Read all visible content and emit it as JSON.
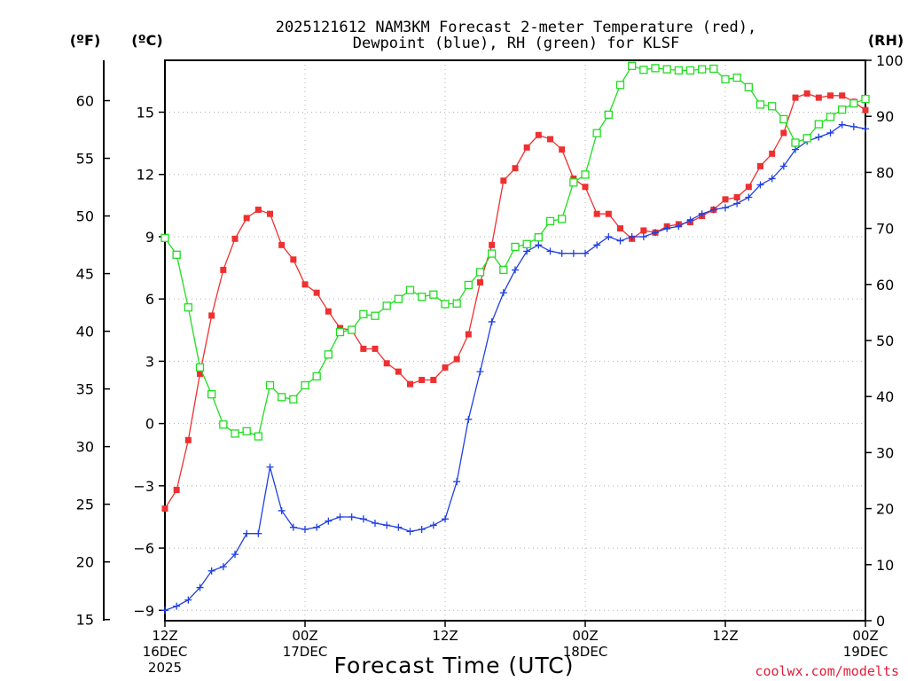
{
  "title": {
    "line1": "2025121612 NAM3KM Forecast 2-meter Temperature (red),",
    "line2": "Dewpoint (blue), RH (green) for KLSF"
  },
  "units": {
    "f": "(ºF)",
    "c": "(ºC)",
    "rh": "(RH)"
  },
  "xaxis_title": "Forecast Time (UTC)",
  "credit": "coolwx.com/modelts",
  "chart_data": {
    "type": "line",
    "title": "2025121612 NAM3KM Forecast 2-meter Temperature (red), Dewpoint (blue), RH (green) for KLSF",
    "xlabel": "Forecast Time (UTC)",
    "x_hours": [
      0,
      1,
      2,
      3,
      4,
      5,
      6,
      7,
      8,
      9,
      10,
      11,
      12,
      13,
      14,
      15,
      16,
      17,
      18,
      19,
      20,
      21,
      22,
      23,
      24,
      25,
      26,
      27,
      28,
      29,
      30,
      31,
      32,
      33,
      34,
      35,
      36,
      37,
      38,
      39,
      40,
      41,
      42,
      43,
      44,
      45,
      46,
      47,
      48,
      49,
      50,
      51,
      52,
      53,
      54,
      55,
      56,
      57,
      58,
      59,
      60
    ],
    "xlim": [
      0,
      60
    ],
    "x_ticks": [
      {
        "hour": 0,
        "lines": [
          "12Z",
          "16DEC",
          "2025"
        ]
      },
      {
        "hour": 12,
        "lines": [
          "00Z",
          "17DEC"
        ]
      },
      {
        "hour": 24,
        "lines": [
          "12Z"
        ]
      },
      {
        "hour": 36,
        "lines": [
          "00Z",
          "18DEC"
        ]
      },
      {
        "hour": 48,
        "lines": [
          "12Z"
        ]
      },
      {
        "hour": 60,
        "lines": [
          "00Z",
          "19DEC"
        ]
      }
    ],
    "y_left_celsius": {
      "label": "(ºC)",
      "range": [
        -9.5,
        17.5
      ],
      "ticks": [
        -9,
        -6,
        -3,
        0,
        3,
        6,
        9,
        12,
        15
      ]
    },
    "y_left_fahrenheit": {
      "label": "(ºF)",
      "ticks": [
        15,
        20,
        25,
        30,
        35,
        40,
        45,
        50,
        55,
        60
      ]
    },
    "y_right_rh": {
      "label": "(RH)",
      "range": [
        0,
        100
      ],
      "ticks": [
        0,
        10,
        20,
        30,
        40,
        50,
        60,
        70,
        80,
        90,
        100
      ]
    },
    "series": [
      {
        "name": "2-meter Temperature",
        "color": "#ee3030",
        "marker": "filled-square",
        "axis": "celsius",
        "values": [
          -4.1,
          -3.2,
          -0.8,
          2.4,
          5.2,
          7.4,
          8.9,
          9.9,
          10.3,
          10.1,
          8.6,
          7.9,
          6.7,
          6.3,
          5.4,
          4.6,
          4.5,
          3.6,
          3.6,
          2.9,
          2.5,
          1.9,
          2.1,
          2.1,
          2.7,
          3.1,
          4.3,
          6.8,
          8.6,
          11.7,
          12.3,
          13.3,
          13.9,
          13.7,
          13.2,
          11.8,
          11.4,
          10.1,
          10.1,
          9.4,
          8.9,
          9.3,
          9.2,
          9.5,
          9.6,
          9.7,
          10.0,
          10.3,
          10.8,
          10.9,
          11.4,
          12.4,
          13.0,
          14.0,
          15.7,
          15.9,
          15.7,
          15.8,
          15.8,
          15.5,
          15.1
        ]
      },
      {
        "name": "Dewpoint",
        "color": "#2040e0",
        "marker": "plus",
        "axis": "celsius",
        "values": [
          -9.0,
          -8.8,
          -8.5,
          -7.9,
          -7.1,
          -6.9,
          -6.3,
          -5.3,
          -5.3,
          -2.1,
          -4.2,
          -5.0,
          -5.1,
          -5.0,
          -4.7,
          -4.5,
          -4.5,
          -4.6,
          -4.8,
          -4.9,
          -5.0,
          -5.2,
          -5.1,
          -4.9,
          -4.6,
          -2.8,
          0.2,
          2.5,
          4.9,
          6.3,
          7.4,
          8.3,
          8.6,
          8.3,
          8.2,
          8.2,
          8.2,
          8.6,
          9.0,
          8.8,
          9.0,
          9.0,
          9.2,
          9.4,
          9.5,
          9.8,
          10.1,
          10.3,
          10.4,
          10.6,
          10.9,
          11.5,
          11.8,
          12.4,
          13.2,
          13.6,
          13.8,
          14.0,
          14.4,
          14.3,
          14.2
        ]
      },
      {
        "name": "RH",
        "color": "#20dd20",
        "marker": "open-square",
        "axis": "rh",
        "values": [
          68.3,
          65.3,
          55.9,
          45.2,
          40.4,
          35.0,
          33.4,
          33.8,
          32.9,
          42.0,
          39.9,
          39.5,
          42.0,
          43.6,
          47.5,
          51.5,
          51.9,
          54.7,
          54.4,
          56.2,
          57.4,
          59.0,
          57.8,
          58.2,
          56.5,
          56.6,
          59.9,
          62.2,
          65.5,
          62.6,
          66.7,
          67.2,
          68.4,
          71.3,
          71.7,
          78.2,
          79.6,
          87.0,
          90.3,
          95.6,
          99.0,
          98.3,
          98.6,
          98.4,
          98.2,
          98.2,
          98.4,
          98.5,
          96.6,
          96.9,
          95.2,
          92.1,
          91.8,
          89.5,
          85.3,
          86.1,
          88.6,
          89.9,
          91.2,
          92.3,
          93.1
        ]
      }
    ]
  }
}
